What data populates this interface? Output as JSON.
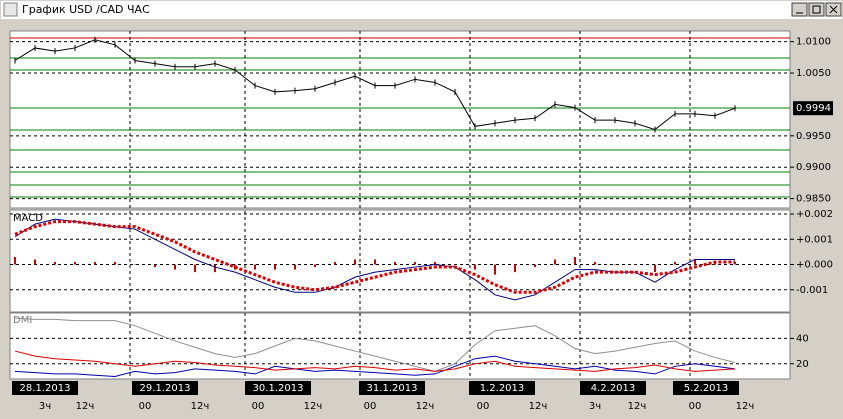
{
  "window_title": "График USD /CAD  ЧАС",
  "chart_data": [
    {
      "type": "line",
      "last_price": 0.9994,
      "ylim": [
        0.9835,
        1.0117
      ],
      "yticks": [
        {
          "value": 1.01,
          "label": "1.0100"
        },
        {
          "value": 1.005,
          "label": "1.0050"
        },
        {
          "value": 0.995,
          "label": "0.9950"
        },
        {
          "value": 0.99,
          "label": "0.9900"
        },
        {
          "value": 0.985,
          "label": "0.9850"
        }
      ],
      "series": [
        {
          "color": "#000000",
          "values": [
            1.007,
            1.009,
            1.0085,
            1.009,
            1.0103,
            1.0095,
            1.007,
            1.0065,
            1.006,
            1.006,
            1.0065,
            1.0055,
            1.003,
            1.002,
            1.0022,
            1.0025,
            1.0035,
            1.0045,
            1.003,
            1.003,
            1.004,
            1.0035,
            1.002,
            0.9965,
            0.997,
            0.9975,
            0.9978,
            1.0,
            0.9995,
            0.9975,
            0.9975,
            0.997,
            0.996,
            0.9985,
            0.9985,
            0.9982,
            0.9994
          ]
        }
      ]
    },
    {
      "type": "macd",
      "title": "MACD",
      "ylim": [
        -0.00188,
        0.00216
      ],
      "yticks": [
        {
          "value": 0.002,
          "label": "+0.002"
        },
        {
          "value": 0.001,
          "label": "+0.001"
        },
        {
          "value": 0,
          "label": "+0.000"
        },
        -0.001
      ],
      "histogram": {
        "color": "#cc0000",
        "values": [
          0.0003,
          0.0002,
          0.0001,
          0.0001,
          0.0001,
          0.0001,
          0.0,
          -0.0001,
          -0.0002,
          -0.0003,
          -0.0003,
          -0.0002,
          -0.0002,
          -0.0002,
          -0.0002,
          -0.0001,
          0.0001,
          0.0002,
          0.0002,
          0.0001,
          0.0001,
          0.0001,
          0.0,
          -0.0002,
          -0.0004,
          -0.0003,
          -0.0001,
          0.0002,
          0.0003,
          0.0001,
          0.0,
          0.0,
          -0.0003,
          0.0001,
          0.0002,
          0.0001,
          0.0001
        ]
      },
      "series": [
        {
          "color": "#000080",
          "style": "solid",
          "values": [
            0.0011,
            0.0016,
            0.0018,
            0.0017,
            0.0016,
            0.0015,
            0.0014,
            0.001,
            0.0006,
            0.0002,
            -0.0001,
            -0.0003,
            -0.0006,
            -0.0009,
            -0.0011,
            -0.0011,
            -0.0009,
            -0.0005,
            -0.0003,
            -0.0002,
            -0.0001,
            0.0,
            -0.0001,
            -0.0006,
            -0.0012,
            -0.0014,
            -0.0012,
            -0.0007,
            -0.0002,
            -0.0002,
            -0.0003,
            -0.0003,
            -0.0007,
            -0.0002,
            0.0002,
            0.0002,
            0.0002
          ]
        },
        {
          "color": "#dd0000",
          "style": "dotted",
          "values": [
            0.0012,
            0.0015,
            0.0017,
            0.0017,
            0.0016,
            0.0015,
            0.0015,
            0.0012,
            0.0009,
            0.0005,
            0.0002,
            -0.0001,
            -0.0004,
            -0.0007,
            -0.0009,
            -0.001,
            -0.0009,
            -0.0007,
            -0.0005,
            -0.0003,
            -0.0002,
            -0.0001,
            -0.0001,
            -0.0004,
            -0.0008,
            -0.0011,
            -0.0011,
            -0.0009,
            -0.0005,
            -0.0003,
            -0.0003,
            -0.0003,
            -0.0004,
            -0.0003,
            -0.0001,
            0.0001,
            0.0001
          ]
        }
      ]
    },
    {
      "type": "dmi",
      "title": "DMI",
      "ylim": [
        8,
        60
      ],
      "yticks": [
        40,
        20
      ],
      "series": [
        {
          "color": "#909090",
          "values": [
            56,
            55,
            55,
            54,
            54,
            54,
            50,
            44,
            38,
            33,
            28,
            25,
            28,
            34,
            40,
            38,
            34,
            30,
            26,
            22,
            18,
            14,
            20,
            35,
            46,
            48,
            50,
            42,
            32,
            28,
            30,
            33,
            36,
            38,
            30,
            25,
            21
          ]
        },
        {
          "color": "#0000aa",
          "values": [
            14,
            13,
            12,
            12,
            11,
            10,
            14,
            12,
            13,
            16,
            15,
            14,
            12,
            18,
            16,
            14,
            15,
            14,
            13,
            12,
            11,
            12,
            18,
            24,
            26,
            22,
            20,
            18,
            16,
            18,
            15,
            14,
            12,
            18,
            20,
            18,
            16
          ]
        },
        {
          "color": "#dd0000",
          "values": [
            30,
            26,
            24,
            23,
            22,
            20,
            18,
            20,
            22,
            21,
            19,
            18,
            17,
            15,
            16,
            17,
            16,
            18,
            17,
            15,
            16,
            14,
            16,
            20,
            22,
            18,
            17,
            16,
            15,
            14,
            16,
            17,
            19,
            16,
            14,
            15,
            16
          ]
        }
      ],
      "date_labels": [
        "28.1.2013",
        "29.1.2013",
        "30.1.2013",
        "31.1.2013",
        "1.2.2013",
        "4.2.2013",
        "5.2.2013"
      ],
      "time_labels": [
        "3ч",
        "12ч",
        "00",
        "12ч",
        "00",
        "12ч",
        "00",
        "12ч",
        "00",
        "12ч",
        "3ч",
        "12ч",
        "00",
        "12ч"
      ]
    }
  ]
}
